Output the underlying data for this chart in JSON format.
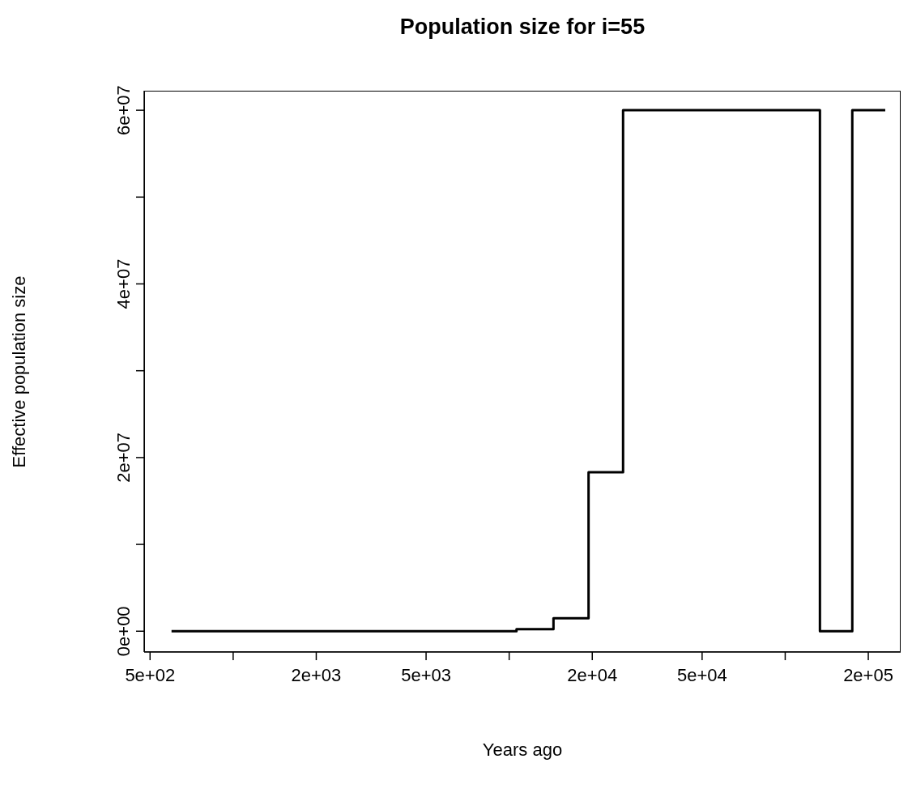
{
  "chart_data": {
    "type": "step",
    "title": "Population size for i=55",
    "xlabel": "Years ago",
    "ylabel": "Effective population size",
    "x": [
      598,
      10630,
      14470,
      19390,
      25860,
      133600,
      175000,
      230400
    ],
    "series": [
      {
        "color": "#000000",
        "values": [
          0,
          240000,
          1500000,
          18300000,
          60000000,
          0,
          60000000,
          60000000
        ]
      }
    ],
    "log": "x",
    "xlim": [
      476,
      262000
    ],
    "xticks": [
      {
        "value": 500,
        "label": "5e+02"
      },
      {
        "value": 1000,
        "label": null
      },
      {
        "value": 2000,
        "label": "2e+03"
      },
      {
        "value": 5000,
        "label": "5e+03"
      },
      {
        "value": 10000,
        "label": null
      },
      {
        "value": 20000,
        "label": "2e+04"
      },
      {
        "value": 50000,
        "label": "5e+04"
      },
      {
        "value": 100000,
        "label": null
      },
      {
        "value": 200000,
        "label": "2e+05"
      }
    ],
    "ylim": [
      -2400000,
      62250000
    ],
    "yticks": [
      {
        "value": 0,
        "label": "0e+00"
      },
      {
        "value": 10000000,
        "label": null
      },
      {
        "value": 20000000,
        "label": "2e+07"
      },
      {
        "value": 30000000,
        "label": null
      },
      {
        "value": 40000000,
        "label": "4e+07"
      },
      {
        "value": 50000000,
        "label": null
      },
      {
        "value": 60000000,
        "label": "6e+07"
      }
    ],
    "grid": false,
    "legend": false,
    "marker": "none",
    "line_style": "solid"
  }
}
